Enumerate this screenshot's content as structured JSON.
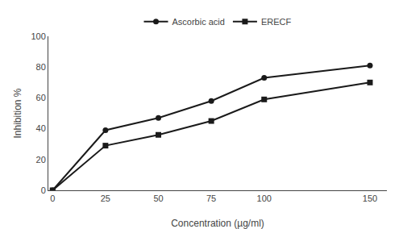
{
  "chart_data": {
    "type": "line",
    "x": [
      0,
      25,
      50,
      75,
      100,
      150
    ],
    "series": [
      {
        "name": "Ascorbic acid",
        "color": "#1a1a1a",
        "marker": "circle",
        "values": [
          0,
          39,
          47,
          58,
          73,
          81
        ]
      },
      {
        "name": "ERECF",
        "color": "#1a1a1a",
        "marker": "square",
        "values": [
          0,
          29,
          36,
          45,
          59,
          70
        ]
      }
    ],
    "xlabel": "Concentration (µg/ml)",
    "ylabel": "Inhibition %",
    "xlim": [
      -2,
      158
    ],
    "ylim": [
      0,
      100
    ],
    "xticks": [
      0,
      25,
      50,
      75,
      100,
      150
    ],
    "yticks": [
      0,
      20,
      40,
      60,
      80,
      100
    ],
    "grid": false,
    "legend": "upper center"
  }
}
